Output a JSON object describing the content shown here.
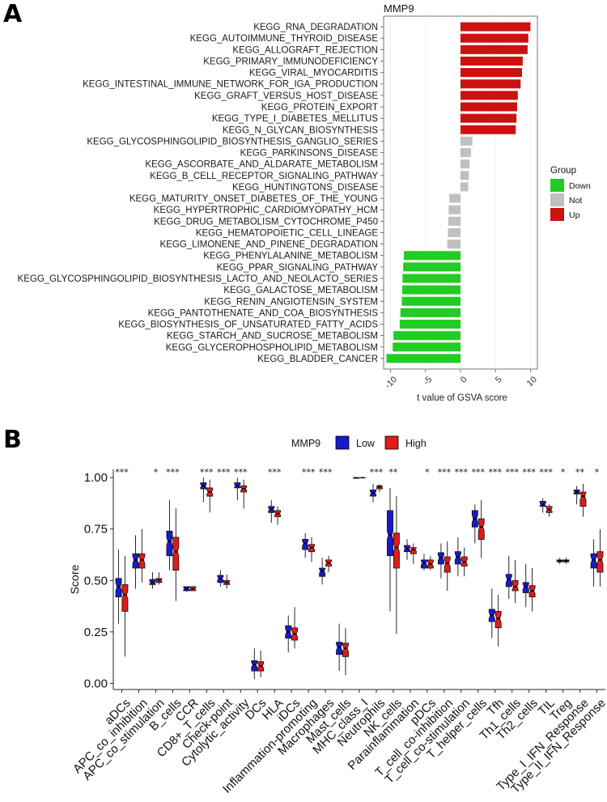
{
  "panel_a": {
    "letter": "A",
    "legend_title": "Group",
    "legend": [
      {
        "label": "Down",
        "color": "#22cc22"
      },
      {
        "label": "Not",
        "color": "#c0c0c0"
      },
      {
        "label": "Up",
        "color": "#cc1111"
      }
    ]
  },
  "panel_b": {
    "letter": "B",
    "legend_title": "MMP9",
    "legend": [
      {
        "label": "Low",
        "color": "#1a1acc"
      },
      {
        "label": "High",
        "color": "#dd1c1c"
      }
    ]
  },
  "chart_data": [
    {
      "type": "bar",
      "orientation": "horizontal",
      "title": "MMP9",
      "xlabel": "t value of GSVA score",
      "ylabel": "",
      "xlim": [
        -11,
        11
      ],
      "xticks": [
        -10,
        -5,
        0,
        5,
        10
      ],
      "categories": [
        "KEGG_RNA_DEGRADATION",
        "KEGG_AUTOIMMUNE_THYROID_DISEASE",
        "KEGG_ALLOGRAFT_REJECTION",
        "KEGG_PRIMARY_IMMUNODEFICIENCY",
        "KEGG_VIRAL_MYOCARDITIS",
        "KEGG_INTESTINAL_IMMUNE_NETWORK_FOR_IGA_PRODUCTION",
        "KEGG_GRAFT_VERSUS_HOST_DISEASE",
        "KEGG_PROTEIN_EXPORT",
        "KEGG_TYPE_I_DIABETES_MELLITUS",
        "KEGG_N_GLYCAN_BIOSYNTHESIS",
        "KEGG_GLYCOSPHINGOLIPID_BIOSYNTHESIS_GANGLIO_SERIES",
        "KEGG_PARKINSONS_DISEASE",
        "KEGG_ASCORBATE_AND_ALDARATE_METABOLISM",
        "KEGG_B_CELL_RECEPTOR_SIGNALING_PATHWAY",
        "KEGG_HUNTINGTONS_DISEASE",
        "KEGG_MATURITY_ONSET_DIABETES_OF_THE_YOUNG",
        "KEGG_HYPERTROPHIC_CARDIOMYOPATHY_HCM",
        "KEGG_DRUG_METABOLISM_CYTOCHROME_P450",
        "KEGG_HEMATOPOIETIC_CELL_LINEAGE",
        "KEGG_LIMONENE_AND_PINENE_DEGRADATION",
        "KEGG_PHENYLALANINE_METABOLISM",
        "KEGG_PPAR_SIGNALING_PATHWAY",
        "KEGG_GLYCOSPHINGOLIPID_BIOSYNTHESIS_LACTO_AND_NEOLACTO_SERIES",
        "KEGG_GALACTOSE_METABOLISM",
        "KEGG_RENIN_ANGIOTENSIN_SYSTEM",
        "KEGG_PANTOTHENATE_AND_COA_BIOSYNTHESIS",
        "KEGG_BIOSYNTHESIS_OF_UNSATURATED_FATTY_ACIDS",
        "KEGG_STARCH_AND_SUCROSE_METABOLISM",
        "KEGG_GLYCEROPHOSPHOLIPID_METABOLISM",
        "KEGG_BLADDER_CANCER"
      ],
      "values": [
        10.0,
        9.7,
        9.6,
        8.9,
        8.8,
        8.6,
        8.2,
        8.1,
        8.0,
        7.9,
        1.7,
        1.5,
        1.3,
        1.2,
        1.1,
        -1.6,
        -1.7,
        -1.75,
        -1.8,
        -1.9,
        -8.1,
        -8.2,
        -8.3,
        -8.35,
        -8.4,
        -8.6,
        -8.7,
        -9.6,
        -9.7,
        -10.6
      ],
      "groups": [
        "Up",
        "Up",
        "Up",
        "Up",
        "Up",
        "Up",
        "Up",
        "Up",
        "Up",
        "Up",
        "Not",
        "Not",
        "Not",
        "Not",
        "Not",
        "Not",
        "Not",
        "Not",
        "Not",
        "Not",
        "Down",
        "Down",
        "Down",
        "Down",
        "Down",
        "Down",
        "Down",
        "Down",
        "Down",
        "Down"
      ],
      "legend_position": "right"
    },
    {
      "type": "boxplot",
      "title": "",
      "xlabel": "",
      "ylabel": "Score",
      "ylim": [
        -0.03,
        1.04
      ],
      "yticks": [
        0.0,
        0.25,
        0.5,
        0.75,
        1.0
      ],
      "ytick_labels": [
        "0.00",
        "0.25",
        "0.50",
        "0.75",
        "1.00"
      ],
      "legend_position": "top",
      "categories": [
        "aDCs",
        "APC_co_inhibition",
        "APC_co_stimulation",
        "B_cells",
        "CCR",
        "CD8+_T_cells",
        "Check-point",
        "Cytolytic_activity",
        "DCs",
        "HLA",
        "iDCs",
        "Inflammation-promoting",
        "Macrophages",
        "Mast_cells",
        "MHC_class_I",
        "Neutrophils",
        "NK_cells",
        "Parainflammation",
        "pDCs",
        "T_cell_co-inhibition",
        "T_cell_co-stimulation",
        "T_helper_cells",
        "Tfh",
        "Th1_cells",
        "Th2_cells",
        "TIL",
        "Treg",
        "Type_I_IFN_Response",
        "Type_II_IFN_Response"
      ],
      "significance": [
        "***",
        "",
        "*",
        "***",
        "",
        "***",
        "***",
        "***",
        "",
        "***",
        "",
        "***",
        "***",
        "",
        "",
        "***",
        "**",
        "",
        "*",
        "***",
        "***",
        "***",
        "***",
        "***",
        "***",
        "***",
        "*",
        "**",
        "*"
      ],
      "series": [
        {
          "name": "Low",
          "whisker_low": [
            0.29,
            0.46,
            0.46,
            0.55,
            0.445,
            0.88,
            0.47,
            0.89,
            0.02,
            0.78,
            0.15,
            0.61,
            0.48,
            0.06,
            0.995,
            0.88,
            0.35,
            0.6,
            0.55,
            0.51,
            0.52,
            0.68,
            0.22,
            0.41,
            0.37,
            0.83,
            0.58,
            0.87,
            0.47
          ],
          "q1": [
            0.42,
            0.56,
            0.48,
            0.62,
            0.45,
            0.945,
            0.49,
            0.95,
            0.06,
            0.83,
            0.22,
            0.65,
            0.52,
            0.14,
            0.997,
            0.91,
            0.62,
            0.64,
            0.56,
            0.58,
            0.58,
            0.76,
            0.3,
            0.47,
            0.44,
            0.86,
            0.59,
            0.92,
            0.56
          ],
          "median": [
            0.47,
            0.6,
            0.49,
            0.69,
            0.46,
            0.96,
            0.51,
            0.96,
            0.09,
            0.845,
            0.25,
            0.68,
            0.545,
            0.175,
            0.999,
            0.925,
            0.72,
            0.655,
            0.585,
            0.61,
            0.615,
            0.8,
            0.33,
            0.505,
            0.47,
            0.87,
            0.595,
            0.93,
            0.6
          ],
          "q3": [
            0.51,
            0.63,
            0.505,
            0.74,
            0.47,
            0.975,
            0.525,
            0.975,
            0.11,
            0.86,
            0.28,
            0.7,
            0.56,
            0.2,
            1.0,
            0.94,
            0.84,
            0.67,
            0.6,
            0.635,
            0.64,
            0.84,
            0.36,
            0.53,
            0.49,
            0.885,
            0.6,
            0.94,
            0.63
          ],
          "whisker_high": [
            0.65,
            0.72,
            0.54,
            0.89,
            0.47,
            1.0,
            0.55,
            1.0,
            0.17,
            0.89,
            0.33,
            0.73,
            0.61,
            0.29,
            1.0,
            0.97,
            0.95,
            0.7,
            0.63,
            0.68,
            0.71,
            0.87,
            0.46,
            0.62,
            0.58,
            0.9,
            0.61,
            0.96,
            0.7
          ]
        },
        {
          "name": "High",
          "whisker_low": [
            0.13,
            0.49,
            0.48,
            0.4,
            0.45,
            0.83,
            0.46,
            0.85,
            0.03,
            0.77,
            0.17,
            0.59,
            0.54,
            0.04,
            0.998,
            0.93,
            0.24,
            0.58,
            0.55,
            0.45,
            0.52,
            0.61,
            0.18,
            0.39,
            0.35,
            0.81,
            0.58,
            0.81,
            0.47
          ],
          "q1": [
            0.35,
            0.56,
            0.49,
            0.55,
            0.45,
            0.91,
            0.48,
            0.93,
            0.06,
            0.81,
            0.21,
            0.64,
            0.57,
            0.13,
            0.999,
            0.945,
            0.56,
            0.63,
            0.56,
            0.54,
            0.57,
            0.7,
            0.27,
            0.45,
            0.42,
            0.83,
            0.59,
            0.86,
            0.54
          ],
          "median": [
            0.43,
            0.6,
            0.5,
            0.64,
            0.46,
            0.93,
            0.49,
            0.945,
            0.085,
            0.825,
            0.24,
            0.66,
            0.585,
            0.17,
            0.9995,
            0.955,
            0.66,
            0.65,
            0.58,
            0.585,
            0.59,
            0.76,
            0.315,
            0.47,
            0.45,
            0.845,
            0.595,
            0.91,
            0.6
          ],
          "q3": [
            0.48,
            0.63,
            0.51,
            0.71,
            0.47,
            0.95,
            0.5,
            0.96,
            0.105,
            0.84,
            0.27,
            0.675,
            0.6,
            0.195,
            1.0,
            0.96,
            0.73,
            0.66,
            0.6,
            0.615,
            0.615,
            0.8,
            0.35,
            0.5,
            0.475,
            0.86,
            0.6,
            0.93,
            0.64
          ],
          "whisker_high": [
            0.62,
            0.75,
            0.54,
            0.85,
            0.47,
            0.99,
            0.53,
            0.99,
            0.16,
            0.86,
            0.37,
            0.71,
            0.62,
            0.27,
            1.0,
            0.97,
            0.91,
            0.68,
            0.62,
            0.69,
            0.66,
            0.89,
            0.43,
            0.6,
            0.56,
            0.87,
            0.61,
            0.97,
            0.75
          ]
        }
      ]
    }
  ]
}
